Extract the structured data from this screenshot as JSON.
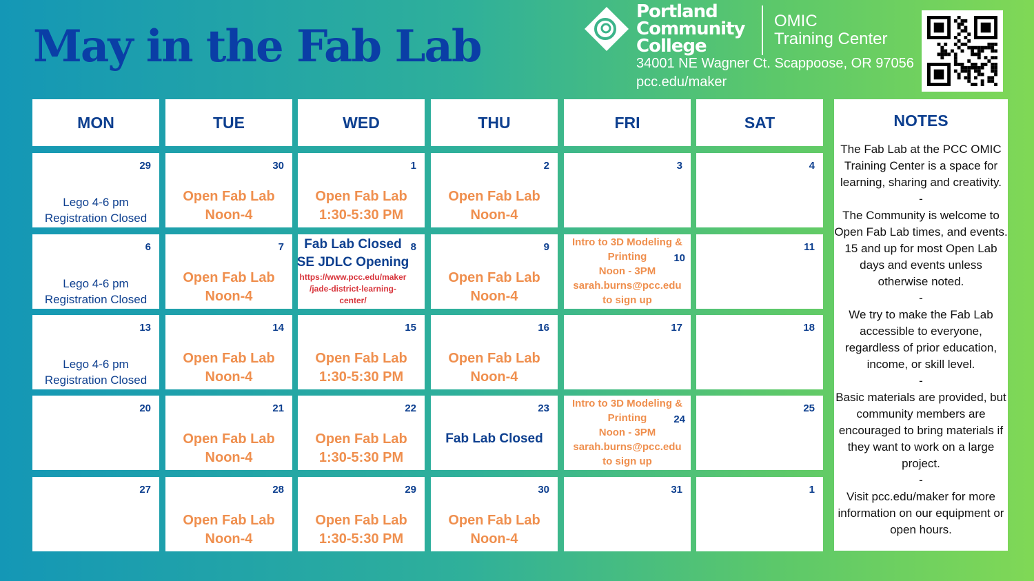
{
  "title": "May in the Fab Lab",
  "brand": {
    "name_lines": [
      "Portland",
      "Community",
      "College"
    ],
    "center_lines": [
      "OMIC",
      "Training Center"
    ],
    "address": "34001 NE Wagner Ct. Scappoose, OR 97056",
    "url": "pcc.edu/maker"
  },
  "colors": {
    "title": "#0a3ea6",
    "navy": "#0d3f8f",
    "orange": "#ef8f4e",
    "red": "#d8353c"
  },
  "days": [
    "MON",
    "TUE",
    "WED",
    "THU",
    "FRI",
    "SAT"
  ],
  "weeks": [
    [
      {
        "day": "29",
        "align": "bottom",
        "events": [
          {
            "text": "Lego 4-6 pm",
            "style": "lego"
          },
          {
            "text": "Registration Closed",
            "style": "lego"
          }
        ]
      },
      {
        "day": "30",
        "align": "center",
        "events": [
          {
            "text": "Open Fab Lab",
            "style": "orange"
          },
          {
            "text": "Noon-4",
            "style": "orange"
          }
        ]
      },
      {
        "day": "1",
        "align": "center",
        "events": [
          {
            "text": "Open Fab Lab",
            "style": "orange"
          },
          {
            "text": "1:30-5:30 PM",
            "style": "orange"
          }
        ]
      },
      {
        "day": "2",
        "align": "center",
        "events": [
          {
            "text": "Open Fab Lab",
            "style": "orange"
          },
          {
            "text": "Noon-4",
            "style": "orange"
          }
        ]
      },
      {
        "day": "3",
        "align": "center",
        "events": []
      },
      {
        "day": "4",
        "align": "center",
        "events": []
      }
    ],
    [
      {
        "day": "6",
        "align": "bottom",
        "events": [
          {
            "text": "Lego 4-6 pm",
            "style": "lego"
          },
          {
            "text": "Registration Closed",
            "style": "lego"
          }
        ]
      },
      {
        "day": "7",
        "align": "center",
        "events": [
          {
            "text": "Open Fab Lab",
            "style": "orange"
          },
          {
            "text": "Noon-4",
            "style": "orange"
          }
        ]
      },
      {
        "day": "8",
        "align": "top",
        "events": [
          {
            "text": "Fab Lab Closed",
            "style": "navy"
          },
          {
            "text": "SE JDLC Opening",
            "style": "navy"
          },
          {
            "text": "https://www.pcc.edu/maker",
            "style": "red"
          },
          {
            "text": "/jade-district-learning-",
            "style": "red"
          },
          {
            "text": "center/",
            "style": "red"
          }
        ]
      },
      {
        "day": "9",
        "align": "center",
        "events": [
          {
            "text": "Open Fab Lab",
            "style": "orange"
          },
          {
            "text": "Noon-4",
            "style": "orange"
          }
        ]
      },
      {
        "day": "10",
        "align": "top",
        "events": [
          {
            "text": "Intro to 3D Modeling &",
            "style": "osm"
          },
          {
            "text": "Printing",
            "style": "osm"
          },
          {
            "text": "Noon - 3PM",
            "style": "osm"
          },
          {
            "text": "sarah.burns@pcc.edu",
            "style": "osm"
          },
          {
            "text": "to sign up",
            "style": "osm"
          }
        ]
      },
      {
        "day": "11",
        "align": "center",
        "events": []
      }
    ],
    [
      {
        "day": "13",
        "align": "bottom",
        "events": [
          {
            "text": "Lego 4-6 pm",
            "style": "lego"
          },
          {
            "text": "Registration Closed",
            "style": "lego"
          }
        ]
      },
      {
        "day": "14",
        "align": "center",
        "events": [
          {
            "text": "Open Fab Lab",
            "style": "orange"
          },
          {
            "text": "Noon-4",
            "style": "orange"
          }
        ]
      },
      {
        "day": "15",
        "align": "center",
        "events": [
          {
            "text": "Open Fab Lab",
            "style": "orange"
          },
          {
            "text": "1:30-5:30 PM",
            "style": "orange"
          }
        ]
      },
      {
        "day": "16",
        "align": "center",
        "events": [
          {
            "text": "Open Fab Lab",
            "style": "orange"
          },
          {
            "text": "Noon-4",
            "style": "orange"
          }
        ]
      },
      {
        "day": "17",
        "align": "center",
        "events": []
      },
      {
        "day": "18",
        "align": "center",
        "events": []
      }
    ],
    [
      {
        "day": "20",
        "align": "center",
        "events": []
      },
      {
        "day": "21",
        "align": "center",
        "events": [
          {
            "text": "Open Fab Lab",
            "style": "orange"
          },
          {
            "text": "Noon-4",
            "style": "orange"
          }
        ]
      },
      {
        "day": "22",
        "align": "center",
        "events": [
          {
            "text": "Open Fab Lab",
            "style": "orange"
          },
          {
            "text": "1:30-5:30 PM",
            "style": "orange"
          }
        ]
      },
      {
        "day": "23",
        "align": "navymid",
        "events": [
          {
            "text": "Fab Lab Closed",
            "style": "navy"
          }
        ]
      },
      {
        "day": "24",
        "align": "top",
        "events": [
          {
            "text": "Intro to 3D Modeling &",
            "style": "osm"
          },
          {
            "text": "Printing",
            "style": "osm"
          },
          {
            "text": "Noon - 3PM",
            "style": "osm"
          },
          {
            "text": "sarah.burns@pcc.edu",
            "style": "osm"
          },
          {
            "text": "to sign up",
            "style": "osm"
          }
        ]
      },
      {
        "day": "25",
        "align": "center",
        "events": []
      }
    ],
    [
      {
        "day": "27",
        "align": "center",
        "events": []
      },
      {
        "day": "28",
        "align": "center",
        "events": [
          {
            "text": "Open Fab Lab",
            "style": "orange"
          },
          {
            "text": "Noon-4",
            "style": "orange"
          }
        ]
      },
      {
        "day": "29",
        "align": "center",
        "events": [
          {
            "text": "Open Fab Lab",
            "style": "orange"
          },
          {
            "text": "1:30-5:30 PM",
            "style": "orange"
          }
        ]
      },
      {
        "day": "30",
        "align": "center",
        "events": [
          {
            "text": "Open Fab Lab",
            "style": "orange"
          },
          {
            "text": "Noon-4",
            "style": "orange"
          }
        ]
      },
      {
        "day": "31",
        "align": "center",
        "events": []
      },
      {
        "day": "1",
        "align": "center",
        "events": []
      }
    ]
  ],
  "notes": {
    "title": "NOTES",
    "paragraphs": [
      "The Fab Lab at the PCC OMIC Training Center is a space for learning, sharing and creativity.",
      "-",
      "The Community is welcome to Open Fab Lab times, and events. 15 and up for most Open Lab days and events unless otherwise noted.",
      "-",
      "We try to make the Fab Lab accessible to everyone, regardless of prior education, income, or skill level.",
      "-",
      "Basic materials are provided, but community members are encouraged to bring materials if they want to work on a large project.",
      "-",
      "Visit pcc.edu/maker for more information on our equipment or open hours."
    ]
  }
}
